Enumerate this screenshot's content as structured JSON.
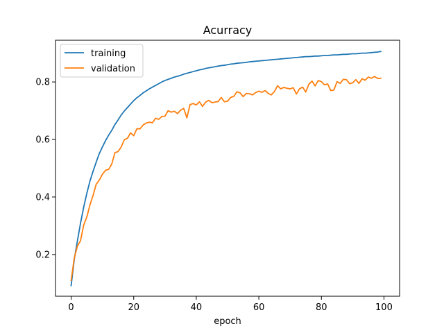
{
  "chart_data": {
    "type": "line",
    "title": "Acurracy",
    "xlabel": "epoch",
    "ylabel": "",
    "xlim": [
      -5,
      105
    ],
    "ylim": [
      0.055,
      0.945
    ],
    "x_ticks": [
      0,
      20,
      40,
      60,
      80,
      100
    ],
    "y_ticks": [
      0.2,
      0.4,
      0.6,
      0.8
    ],
    "x_tick_labels": [
      "0",
      "20",
      "40",
      "60",
      "80",
      "100"
    ],
    "y_tick_labels": [
      "0.2",
      "0.4",
      "0.6",
      "0.8"
    ],
    "grid": false,
    "legend_position": "top-left",
    "series": [
      {
        "name": "training",
        "color": "#1f77b4",
        "values": [
          0.092,
          0.183,
          0.247,
          0.309,
          0.364,
          0.412,
          0.455,
          0.489,
          0.521,
          0.551,
          0.574,
          0.596,
          0.615,
          0.632,
          0.652,
          0.668,
          0.685,
          0.699,
          0.711,
          0.723,
          0.735,
          0.745,
          0.753,
          0.762,
          0.769,
          0.776,
          0.782,
          0.788,
          0.794,
          0.8,
          0.805,
          0.809,
          0.813,
          0.817,
          0.82,
          0.823,
          0.827,
          0.83,
          0.833,
          0.836,
          0.839,
          0.842,
          0.844,
          0.847,
          0.849,
          0.851,
          0.853,
          0.855,
          0.857,
          0.858,
          0.86,
          0.862,
          0.863,
          0.865,
          0.866,
          0.867,
          0.868,
          0.87,
          0.871,
          0.872,
          0.873,
          0.874,
          0.875,
          0.876,
          0.877,
          0.878,
          0.879,
          0.88,
          0.881,
          0.882,
          0.883,
          0.884,
          0.885,
          0.886,
          0.887,
          0.888,
          0.888,
          0.889,
          0.89,
          0.89,
          0.891,
          0.892,
          0.892,
          0.893,
          0.894,
          0.894,
          0.895,
          0.896,
          0.896,
          0.897,
          0.898,
          0.898,
          0.899,
          0.9,
          0.9,
          0.901,
          0.902,
          0.903,
          0.904,
          0.906
        ]
      },
      {
        "name": "validation",
        "color": "#ff7f0e",
        "values": [
          0.11,
          0.188,
          0.229,
          0.248,
          0.302,
          0.33,
          0.372,
          0.405,
          0.444,
          0.459,
          0.479,
          0.493,
          0.496,
          0.515,
          0.554,
          0.558,
          0.574,
          0.599,
          0.604,
          0.623,
          0.613,
          0.637,
          0.637,
          0.65,
          0.657,
          0.66,
          0.658,
          0.674,
          0.67,
          0.68,
          0.681,
          0.7,
          0.695,
          0.698,
          0.69,
          0.702,
          0.708,
          0.675,
          0.721,
          0.725,
          0.72,
          0.731,
          0.715,
          0.73,
          0.736,
          0.728,
          0.73,
          0.732,
          0.746,
          0.731,
          0.733,
          0.746,
          0.75,
          0.766,
          0.762,
          0.749,
          0.76,
          0.759,
          0.755,
          0.763,
          0.768,
          0.764,
          0.77,
          0.76,
          0.755,
          0.767,
          0.787,
          0.776,
          0.781,
          0.778,
          0.776,
          0.78,
          0.758,
          0.776,
          0.782,
          0.765,
          0.792,
          0.803,
          0.786,
          0.805,
          0.801,
          0.79,
          0.793,
          0.77,
          0.772,
          0.801,
          0.795,
          0.809,
          0.808,
          0.794,
          0.797,
          0.808,
          0.795,
          0.811,
          0.806,
          0.817,
          0.813,
          0.819,
          0.812,
          0.813
        ]
      }
    ]
  }
}
